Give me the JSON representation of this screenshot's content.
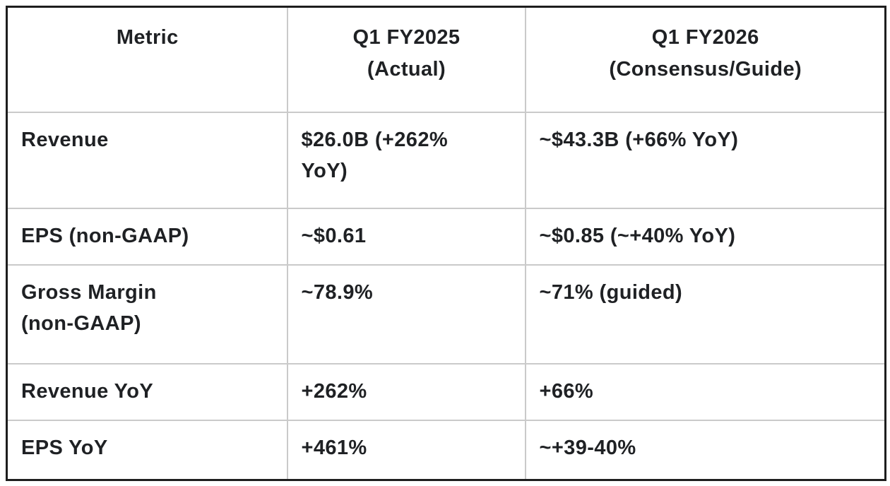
{
  "chart_data": {
    "type": "table",
    "columns": [
      "Metric",
      "Q1 FY2025\n(Actual)",
      "Q1 FY2026\n(Consensus/Guide)"
    ],
    "rows": [
      [
        "Revenue",
        "$26.0B (+262%\nYoY)",
        "~$43.3B (+66% YoY)"
      ],
      [
        "EPS (non-GAAP)",
        "~$0.61",
        "~$0.85 (~+40% YoY)"
      ],
      [
        "Gross Margin\n(non-GAAP)",
        "~78.9%",
        "~71% (guided)"
      ],
      [
        "Revenue YoY",
        "+262%",
        "+66%"
      ],
      [
        "EPS YoY",
        "+461%",
        "~+39-40%"
      ]
    ],
    "layout": {
      "header_align": "center",
      "body_align": "left",
      "grid": true,
      "legend": "none"
    }
  },
  "colors": {
    "text": "#1f2124",
    "outer_border": "#1e1e1e",
    "inner_border": "#cacaca",
    "background": "#ffffff"
  }
}
